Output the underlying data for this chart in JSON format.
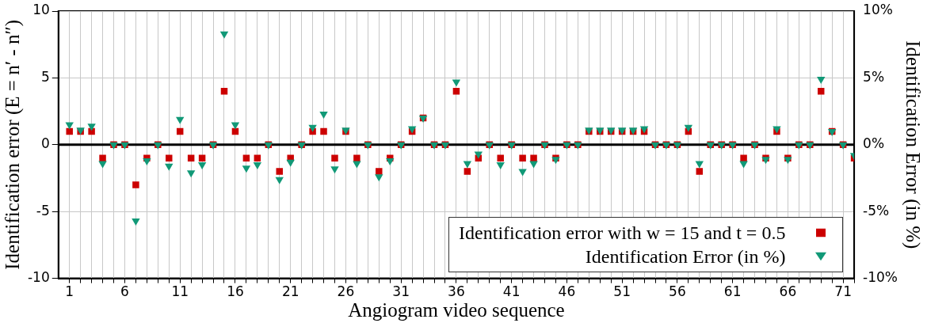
{
  "chart_data": {
    "type": "scatter",
    "xlabel": "Angiogram video sequence",
    "ylabel": "Identification error (E = n′ - n″)",
    "y2label": "Identification Error (in %)",
    "x": [
      1,
      2,
      3,
      4,
      5,
      6,
      7,
      8,
      9,
      10,
      11,
      12,
      13,
      14,
      15,
      16,
      17,
      18,
      19,
      20,
      21,
      22,
      23,
      24,
      25,
      26,
      27,
      28,
      29,
      30,
      31,
      32,
      33,
      34,
      35,
      36,
      37,
      38,
      39,
      40,
      41,
      42,
      43,
      44,
      45,
      46,
      47,
      48,
      49,
      50,
      51,
      52,
      53,
      54,
      55,
      56,
      57,
      58,
      59,
      60,
      61,
      62,
      63,
      64,
      65,
      66,
      67,
      68,
      69,
      70,
      71,
      72
    ],
    "series": [
      {
        "name": "Identification error with w = 15 and t = 0.5",
        "color": "#cc0000",
        "marker": "square",
        "values": [
          1,
          1,
          1,
          -1,
          0,
          0,
          -3,
          -1,
          0,
          -1,
          1,
          -1,
          -1,
          0,
          4,
          1,
          -1,
          -1,
          0,
          -2,
          -1,
          0,
          1,
          1,
          -1,
          1,
          -1,
          0,
          -2,
          -1,
          0,
          1,
          2,
          0,
          0,
          4,
          -2,
          -1,
          0,
          -1,
          0,
          -1,
          -1,
          0,
          -1,
          0,
          0,
          1,
          1,
          1,
          1,
          1,
          1,
          0,
          0,
          0,
          1,
          -2,
          0,
          0,
          0,
          -1,
          0,
          -1,
          1,
          -1,
          0,
          0,
          4,
          1,
          0,
          -1
        ]
      },
      {
        "name": "Identification Error (in %)",
        "color": "#119977",
        "marker": "triangle",
        "axis": "y2",
        "values": [
          1.5,
          1.1,
          1.4,
          -1.4,
          0,
          0,
          -5.7,
          -1.2,
          0,
          -1.6,
          1.9,
          -2.1,
          -1.5,
          0,
          8.3,
          1.5,
          -1.75,
          -1.5,
          0,
          -2.6,
          -1.3,
          0,
          1.3,
          2.3,
          -1.8,
          1.1,
          -1.4,
          0,
          -2.4,
          -1.2,
          0,
          1.2,
          2,
          0,
          0,
          4.7,
          -1.4,
          -0.7,
          0,
          -1.5,
          0,
          -2,
          -1.4,
          0,
          -1.1,
          0,
          0,
          1.1,
          1.1,
          1.1,
          1.1,
          1.1,
          1.2,
          0,
          0,
          0,
          1.3,
          -1.4,
          0,
          0,
          0,
          -1.4,
          0,
          -1.1,
          1.2,
          -1.1,
          0,
          0,
          4.9,
          1,
          0,
          -0.8
        ]
      }
    ],
    "xlim": [
      0,
      72
    ],
    "xticks": [
      1,
      {
        "value": 2,
        "label": null
      },
      {
        "value": 3,
        "label": null
      },
      {
        "value": 4,
        "label": null
      },
      {
        "value": 5,
        "label": null
      },
      6,
      {
        "value": 7,
        "label": null
      },
      {
        "value": 8,
        "label": null
      },
      {
        "value": 9,
        "label": null
      },
      {
        "value": 10,
        "label": null
      },
      11,
      {
        "value": 12,
        "label": null
      },
      {
        "value": 13,
        "label": null
      },
      {
        "value": 14,
        "label": null
      },
      {
        "value": 15,
        "label": null
      },
      16,
      {
        "value": 17,
        "label": null
      },
      {
        "value": 18,
        "label": null
      },
      {
        "value": 19,
        "label": null
      },
      {
        "value": 20,
        "label": null
      },
      21,
      {
        "value": 22,
        "label": null
      },
      {
        "value": 23,
        "label": null
      },
      {
        "value": 24,
        "label": null
      },
      {
        "value": 25,
        "label": null
      },
      26,
      {
        "value": 27,
        "label": null
      },
      {
        "value": 28,
        "label": null
      },
      {
        "value": 29,
        "label": null
      },
      {
        "value": 30,
        "label": null
      },
      31,
      {
        "value": 32,
        "label": null
      },
      {
        "value": 33,
        "label": null
      },
      {
        "value": 34,
        "label": null
      },
      {
        "value": 35,
        "label": null
      },
      36,
      {
        "value": 37,
        "label": null
      },
      {
        "value": 38,
        "label": null
      },
      {
        "value": 39,
        "label": null
      },
      {
        "value": 40,
        "label": null
      },
      41,
      {
        "value": 42,
        "label": null
      },
      {
        "value": 43,
        "label": null
      },
      {
        "value": 44,
        "label": null
      },
      {
        "value": 45,
        "label": null
      },
      46,
      {
        "value": 47,
        "label": null
      },
      {
        "value": 48,
        "label": null
      },
      {
        "value": 49,
        "label": null
      },
      {
        "value": 50,
        "label": null
      },
      51,
      {
        "value": 52,
        "label": null
      },
      {
        "value": 53,
        "label": null
      },
      {
        "value": 54,
        "label": null
      },
      {
        "value": 55,
        "label": null
      },
      56,
      {
        "value": 57,
        "label": null
      },
      {
        "value": 58,
        "label": null
      },
      {
        "value": 59,
        "label": null
      },
      {
        "value": 60,
        "label": null
      },
      61,
      {
        "value": 62,
        "label": null
      },
      {
        "value": 63,
        "label": null
      },
      {
        "value": 64,
        "label": null
      },
      {
        "value": 65,
        "label": null
      },
      66,
      {
        "value": 67,
        "label": null
      },
      {
        "value": 68,
        "label": null
      },
      {
        "value": 69,
        "label": null
      },
      {
        "value": 70,
        "label": null
      },
      71,
      {
        "value": 72,
        "label": null
      }
    ],
    "ylim": [
      -10,
      10
    ],
    "yticks": [
      -10,
      -5,
      0,
      5,
      10
    ],
    "y2lim": [
      -10,
      10
    ],
    "y2ticks": [
      {
        "value": -10,
        "label": "-10%"
      },
      {
        "value": -5,
        "label": "-5%"
      },
      {
        "value": 0,
        "label": "0%"
      },
      {
        "value": 5,
        "label": "5%"
      },
      {
        "value": 10,
        "label": "10%"
      }
    ],
    "ref_lines": [
      {
        "axis": "y",
        "value": 0,
        "color": "#000000"
      }
    ],
    "grid": true,
    "legend": "bottom right"
  }
}
